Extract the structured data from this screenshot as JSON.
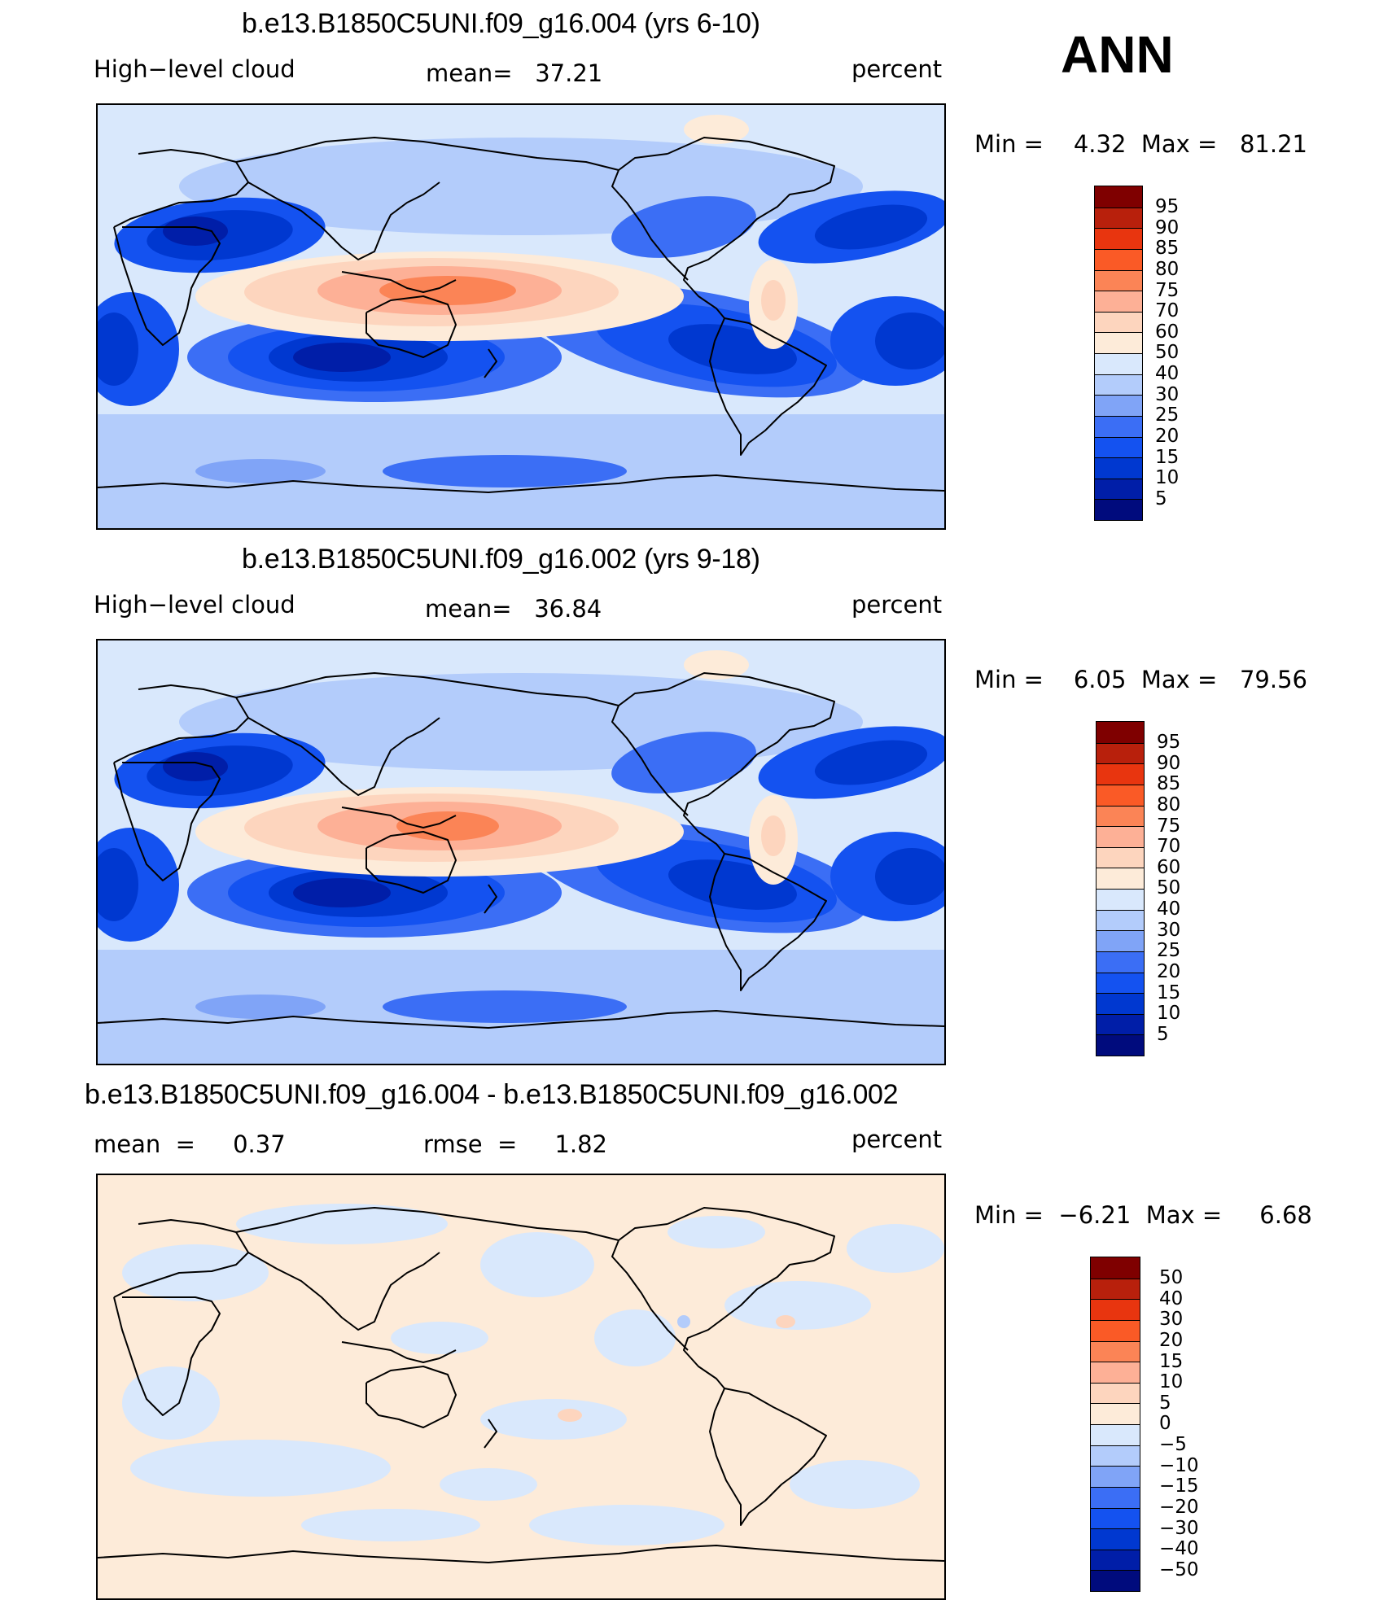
{
  "season": "ANN",
  "colors": {
    "abs_levels": [
      "#000b7d",
      "#001ea8",
      "#0038d0",
      "#1452f0",
      "#3b6ef5",
      "#80a4f7",
      "#b3ccfb",
      "#d9e8fc",
      "#fdebd9",
      "#fdd5be",
      "#fdb096",
      "#fb8456",
      "#fa5a26",
      "#e8350f",
      "#b8200c",
      "#7f0000"
    ],
    "diff_levels": [
      "#000b7d",
      "#001ea8",
      "#0038d0",
      "#1452f0",
      "#3b6ef5",
      "#80a4f7",
      "#b3ccfb",
      "#d9e8fc",
      "#fdebd9",
      "#fdd5be",
      "#fdb096",
      "#fb8456",
      "#fa5a26",
      "#e8350f",
      "#b8200c",
      "#7f0000"
    ]
  },
  "chart_data": [
    {
      "type": "heatmap",
      "title": "b.e13.B1850C5UNI.f09_g16.004 (yrs 6-10)",
      "left_label": "High−level cloud",
      "center_label": "mean=   37.21",
      "right_label": "percent",
      "mean": 37.21,
      "min": 4.32,
      "max": 81.21,
      "minmax_text": "Min =    4.32  Max =   81.21",
      "colorbar_labels": [
        "95",
        "90",
        "85",
        "80",
        "75",
        "70",
        "60",
        "50",
        "40",
        "30",
        "25",
        "20",
        "15",
        "10",
        "5"
      ],
      "colorbar_levels": [
        5,
        10,
        15,
        20,
        25,
        30,
        40,
        50,
        60,
        70,
        75,
        80,
        85,
        90,
        95
      ]
    },
    {
      "type": "heatmap",
      "title": "b.e13.B1850C5UNI.f09_g16.002 (yrs 9-18)",
      "left_label": "High−level cloud",
      "center_label": "mean=   36.84",
      "right_label": "percent",
      "mean": 36.84,
      "min": 6.05,
      "max": 79.56,
      "minmax_text": "Min =    6.05  Max =   79.56",
      "colorbar_labels": [
        "95",
        "90",
        "85",
        "80",
        "75",
        "70",
        "60",
        "50",
        "40",
        "30",
        "25",
        "20",
        "15",
        "10",
        "5"
      ],
      "colorbar_levels": [
        5,
        10,
        15,
        20,
        25,
        30,
        40,
        50,
        60,
        70,
        75,
        80,
        85,
        90,
        95
      ]
    },
    {
      "type": "heatmap",
      "title": "b.e13.B1850C5UNI.f09_g16.004 - b.e13.B1850C5UNI.f09_g16.002",
      "left_label": "mean  =     0.37",
      "center_label": "rmse  =     1.82",
      "right_label": "percent",
      "mean": 0.37,
      "rmse": 1.82,
      "min": -6.21,
      "max": 6.68,
      "minmax_text": "Min =  −6.21  Max =     6.68",
      "colorbar_labels": [
        "50",
        "40",
        "30",
        "20",
        "15",
        "10",
        "5",
        "0",
        "−5",
        "−10",
        "−15",
        "−20",
        "−30",
        "−40",
        "−50"
      ],
      "colorbar_levels": [
        -50,
        -40,
        -30,
        -20,
        -15,
        -10,
        -5,
        0,
        5,
        10,
        15,
        20,
        30,
        40,
        50
      ]
    }
  ]
}
